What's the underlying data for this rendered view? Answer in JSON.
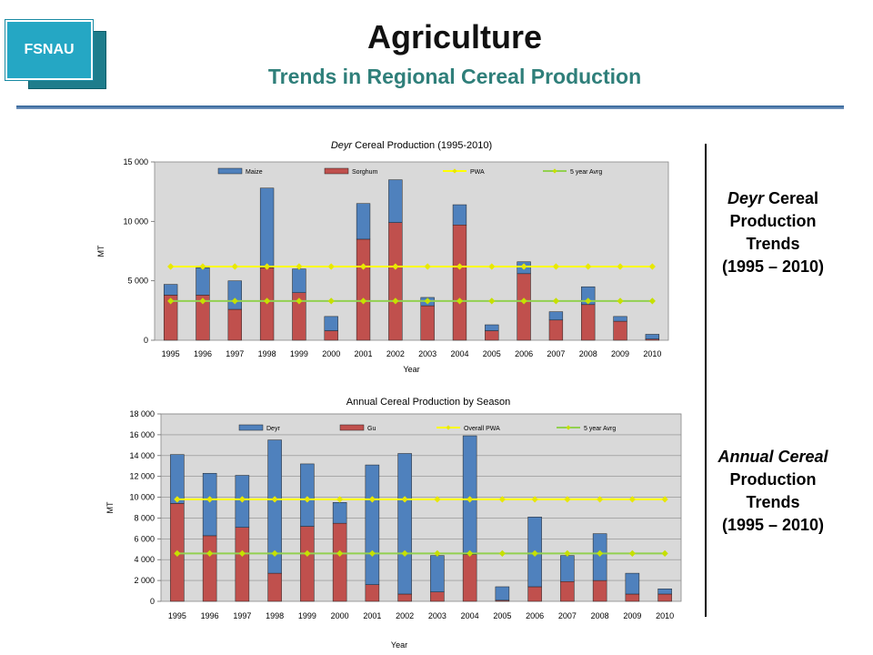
{
  "header": {
    "title": "Agriculture",
    "subtitle": "Trends in Regional Cereal Production",
    "logo_text": "FSNAU"
  },
  "side_labels": {
    "deyr": {
      "l1a": "Deyr",
      "l1b": " Cereal",
      "l2": "Production",
      "l3": "Trends",
      "l4": "(1995 – 2010)"
    },
    "annual": {
      "l1": "Annual Cereal",
      "l2": "Production",
      "l3": "Trends",
      "l4": "(1995 – 2010)"
    }
  },
  "colors": {
    "series1": "#4f81bd",
    "series2": "#c0504d",
    "line1": "#ffff00",
    "line1_marker": "#e8e800",
    "line2": "#92d050",
    "line2_marker": "#c6e000",
    "plot_bg": "#d9d9d9"
  },
  "chart_data": [
    {
      "type": "bar",
      "stacked": true,
      "title_italic": "Deyr",
      "title": " Cereal Production  (1995-2010)",
      "xlabel": "Year",
      "ylabel": "MT",
      "ylim": [
        0,
        15000
      ],
      "yticks": [
        "0",
        "5 000",
        "10 000",
        "15 000"
      ],
      "categories": [
        "1995",
        "1996",
        "1997",
        "1998",
        "1999",
        "2000",
        "2001",
        "2002",
        "2003",
        "2004",
        "2005",
        "2006",
        "2007",
        "2008",
        "2009",
        "2010"
      ],
      "series": [
        {
          "name": "Maize",
          "values": [
            900,
            2300,
            2400,
            6700,
            2000,
            1200,
            3000,
            3600,
            700,
            1700,
            500,
            1000,
            700,
            1500,
            400,
            400
          ]
        },
        {
          "name": "Sorghum",
          "values": [
            3800,
            3800,
            2600,
            6100,
            4000,
            800,
            8500,
            9900,
            2900,
            9700,
            800,
            5600,
            1700,
            3000,
            1600,
            100
          ]
        }
      ],
      "lines": [
        {
          "name": "PWA",
          "value": 6200
        },
        {
          "name": "5 year Avrg",
          "value": 3300
        }
      ],
      "grid": false,
      "legend": "top"
    },
    {
      "type": "bar",
      "stacked": true,
      "title": "Annual Cereal Production  by Season",
      "xlabel": "Year",
      "ylabel": "MT",
      "ylim": [
        0,
        18000
      ],
      "yticks": [
        "0",
        "2 000",
        "4 000",
        "6 000",
        "8 000",
        "10 000",
        "12 000",
        "14 000",
        "16 000",
        "18 000"
      ],
      "categories": [
        "1995",
        "1996",
        "1997",
        "1998",
        "1999",
        "2000",
        "2001",
        "2002",
        "2003",
        "2004",
        "2005",
        "2006",
        "2007",
        "2008",
        "2009",
        "2010"
      ],
      "series": [
        {
          "name": "Deyr",
          "values": [
            4700,
            6000,
            5000,
            12800,
            6000,
            2000,
            11500,
            13500,
            3500,
            11400,
            1300,
            6700,
            2500,
            4500,
            2000,
            500
          ]
        },
        {
          "name": "Gu",
          "values": [
            9400,
            6300,
            7100,
            2700,
            7200,
            7500,
            1600,
            700,
            900,
            4500,
            100,
            1400,
            1900,
            2000,
            700,
            700
          ]
        }
      ],
      "lines": [
        {
          "name": "Overall PWA",
          "value": 9800
        },
        {
          "name": "5 year Avrg",
          "value": 4600
        }
      ],
      "grid": true,
      "legend": "top"
    }
  ]
}
